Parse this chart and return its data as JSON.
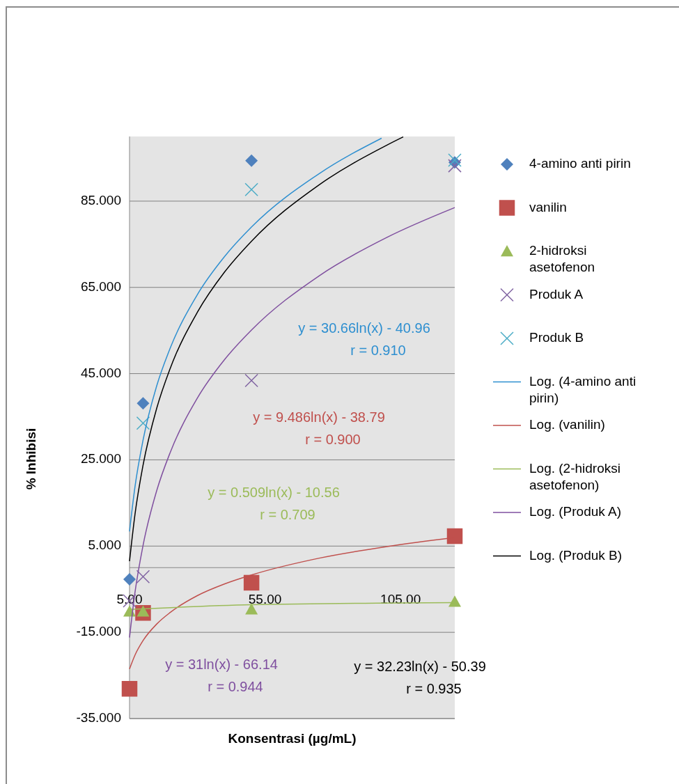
{
  "chart_data": {
    "type": "scatter",
    "xlabel": "Konsentrasi (µg/mL)",
    "ylabel": "% Inhibisi",
    "xlim": [
      5,
      125
    ],
    "xticks": [
      {
        "value": 5,
        "label": "5.00"
      },
      {
        "value": 55,
        "label": "55.00"
      },
      {
        "value": 105,
        "label": "105.00"
      }
    ],
    "ylim": [
      -35,
      100
    ],
    "yticks": [
      {
        "value": -35,
        "label": "-35.000"
      },
      {
        "value": -15,
        "label": "-15.000"
      },
      {
        "value": 5,
        "label": "5.000"
      },
      {
        "value": 25,
        "label": "25.000"
      },
      {
        "value": 45,
        "label": "45.000"
      },
      {
        "value": 65,
        "label": "65.000"
      },
      {
        "value": 85,
        "label": "85.000"
      }
    ],
    "grid": "y",
    "legend": "right",
    "annotations": [
      "y = 30.66ln(x) - 40.96\nr = 0.910",
      "y = 9.486ln(x) - 38.79\nr = 0.900",
      "y = 0.509ln(x) - 10.56\nr = 0.709",
      "y = 31ln(x) - 66.14\nr = 0.944",
      "y = 32.23ln(x) - 50.39\nr = 0.935"
    ],
    "series": [
      {
        "name": "4-amino anti pirin",
        "marker": "diamond",
        "color": "#4f81bd",
        "x": [
          5,
          10,
          50,
          125
        ],
        "values": [
          -2.7,
          38.1,
          94.4,
          94.0
        ]
      },
      {
        "name": "vanilin",
        "marker": "square",
        "color": "#c0504d",
        "x": [
          5,
          10,
          50,
          125
        ],
        "values": [
          -28.1,
          -10.5,
          -3.5,
          7.3
        ]
      },
      {
        "name": "2-hidroksi asetofenon",
        "marker": "triangle",
        "color": "#9bbb59",
        "x": [
          5,
          10,
          50,
          125
        ],
        "values": [
          -10.2,
          -10.2,
          -9.7,
          -7.9
        ]
      },
      {
        "name": "Produk A",
        "marker": "cross",
        "color": "#8064a2",
        "x": [
          5,
          10,
          50,
          125
        ],
        "values": [
          -7.7,
          -2.1,
          43.4,
          93.2
        ]
      },
      {
        "name": "Produk B",
        "marker": "cross",
        "color": "#4bacc6",
        "x": [
          10,
          50,
          125
        ],
        "values": [
          33.5,
          87.7,
          94.5
        ]
      },
      {
        "name": "Log. (4-amino anti pirin)",
        "type": "line",
        "marker": "none",
        "color": "#2e8fd0",
        "x": [
          5,
          7,
          10,
          15,
          20,
          30,
          40,
          50,
          75,
          98
        ],
        "values": [
          8.4,
          18.7,
          29.6,
          42.1,
          50.9,
          63.3,
          72.1,
          79.0,
          91.4,
          99.6
        ]
      },
      {
        "name": "Log. (vanilin)",
        "type": "line",
        "marker": "none",
        "color": "#c0504d",
        "x": [
          5,
          7,
          10,
          15,
          20,
          30,
          40,
          50,
          75,
          100,
          125
        ],
        "values": [
          -23.5,
          -20.3,
          -16.9,
          -13.1,
          -10.4,
          -6.5,
          -3.8,
          -1.7,
          2.2,
          4.9,
          7.0
        ]
      },
      {
        "name": "Log. (2-hidroksi asetofenon)",
        "type": "line",
        "marker": "none",
        "color": "#9bbb59",
        "x": [
          5,
          50,
          125
        ],
        "values": [
          -9.7,
          -8.6,
          -8.1
        ]
      },
      {
        "name": "Log. (Produk A)",
        "type": "line",
        "marker": "none",
        "color": "#7f4f9f",
        "x": [
          5,
          7,
          10,
          15,
          20,
          30,
          40,
          50,
          75,
          100,
          125
        ],
        "values": [
          -16.2,
          -5.8,
          5.2,
          17.8,
          26.7,
          39.3,
          48.2,
          55.1,
          67.7,
          76.6,
          83.5
        ]
      },
      {
        "name": "Log. (Produk B)",
        "type": "line",
        "marker": "none",
        "color": "#000000",
        "x": [
          5,
          7,
          10,
          15,
          20,
          30,
          40,
          50,
          75,
          100,
          106
        ],
        "values": [
          1.5,
          12.3,
          23.8,
          36.9,
          46.2,
          59.2,
          68.5,
          75.7,
          88.8,
          98.0,
          99.9
        ]
      }
    ]
  }
}
